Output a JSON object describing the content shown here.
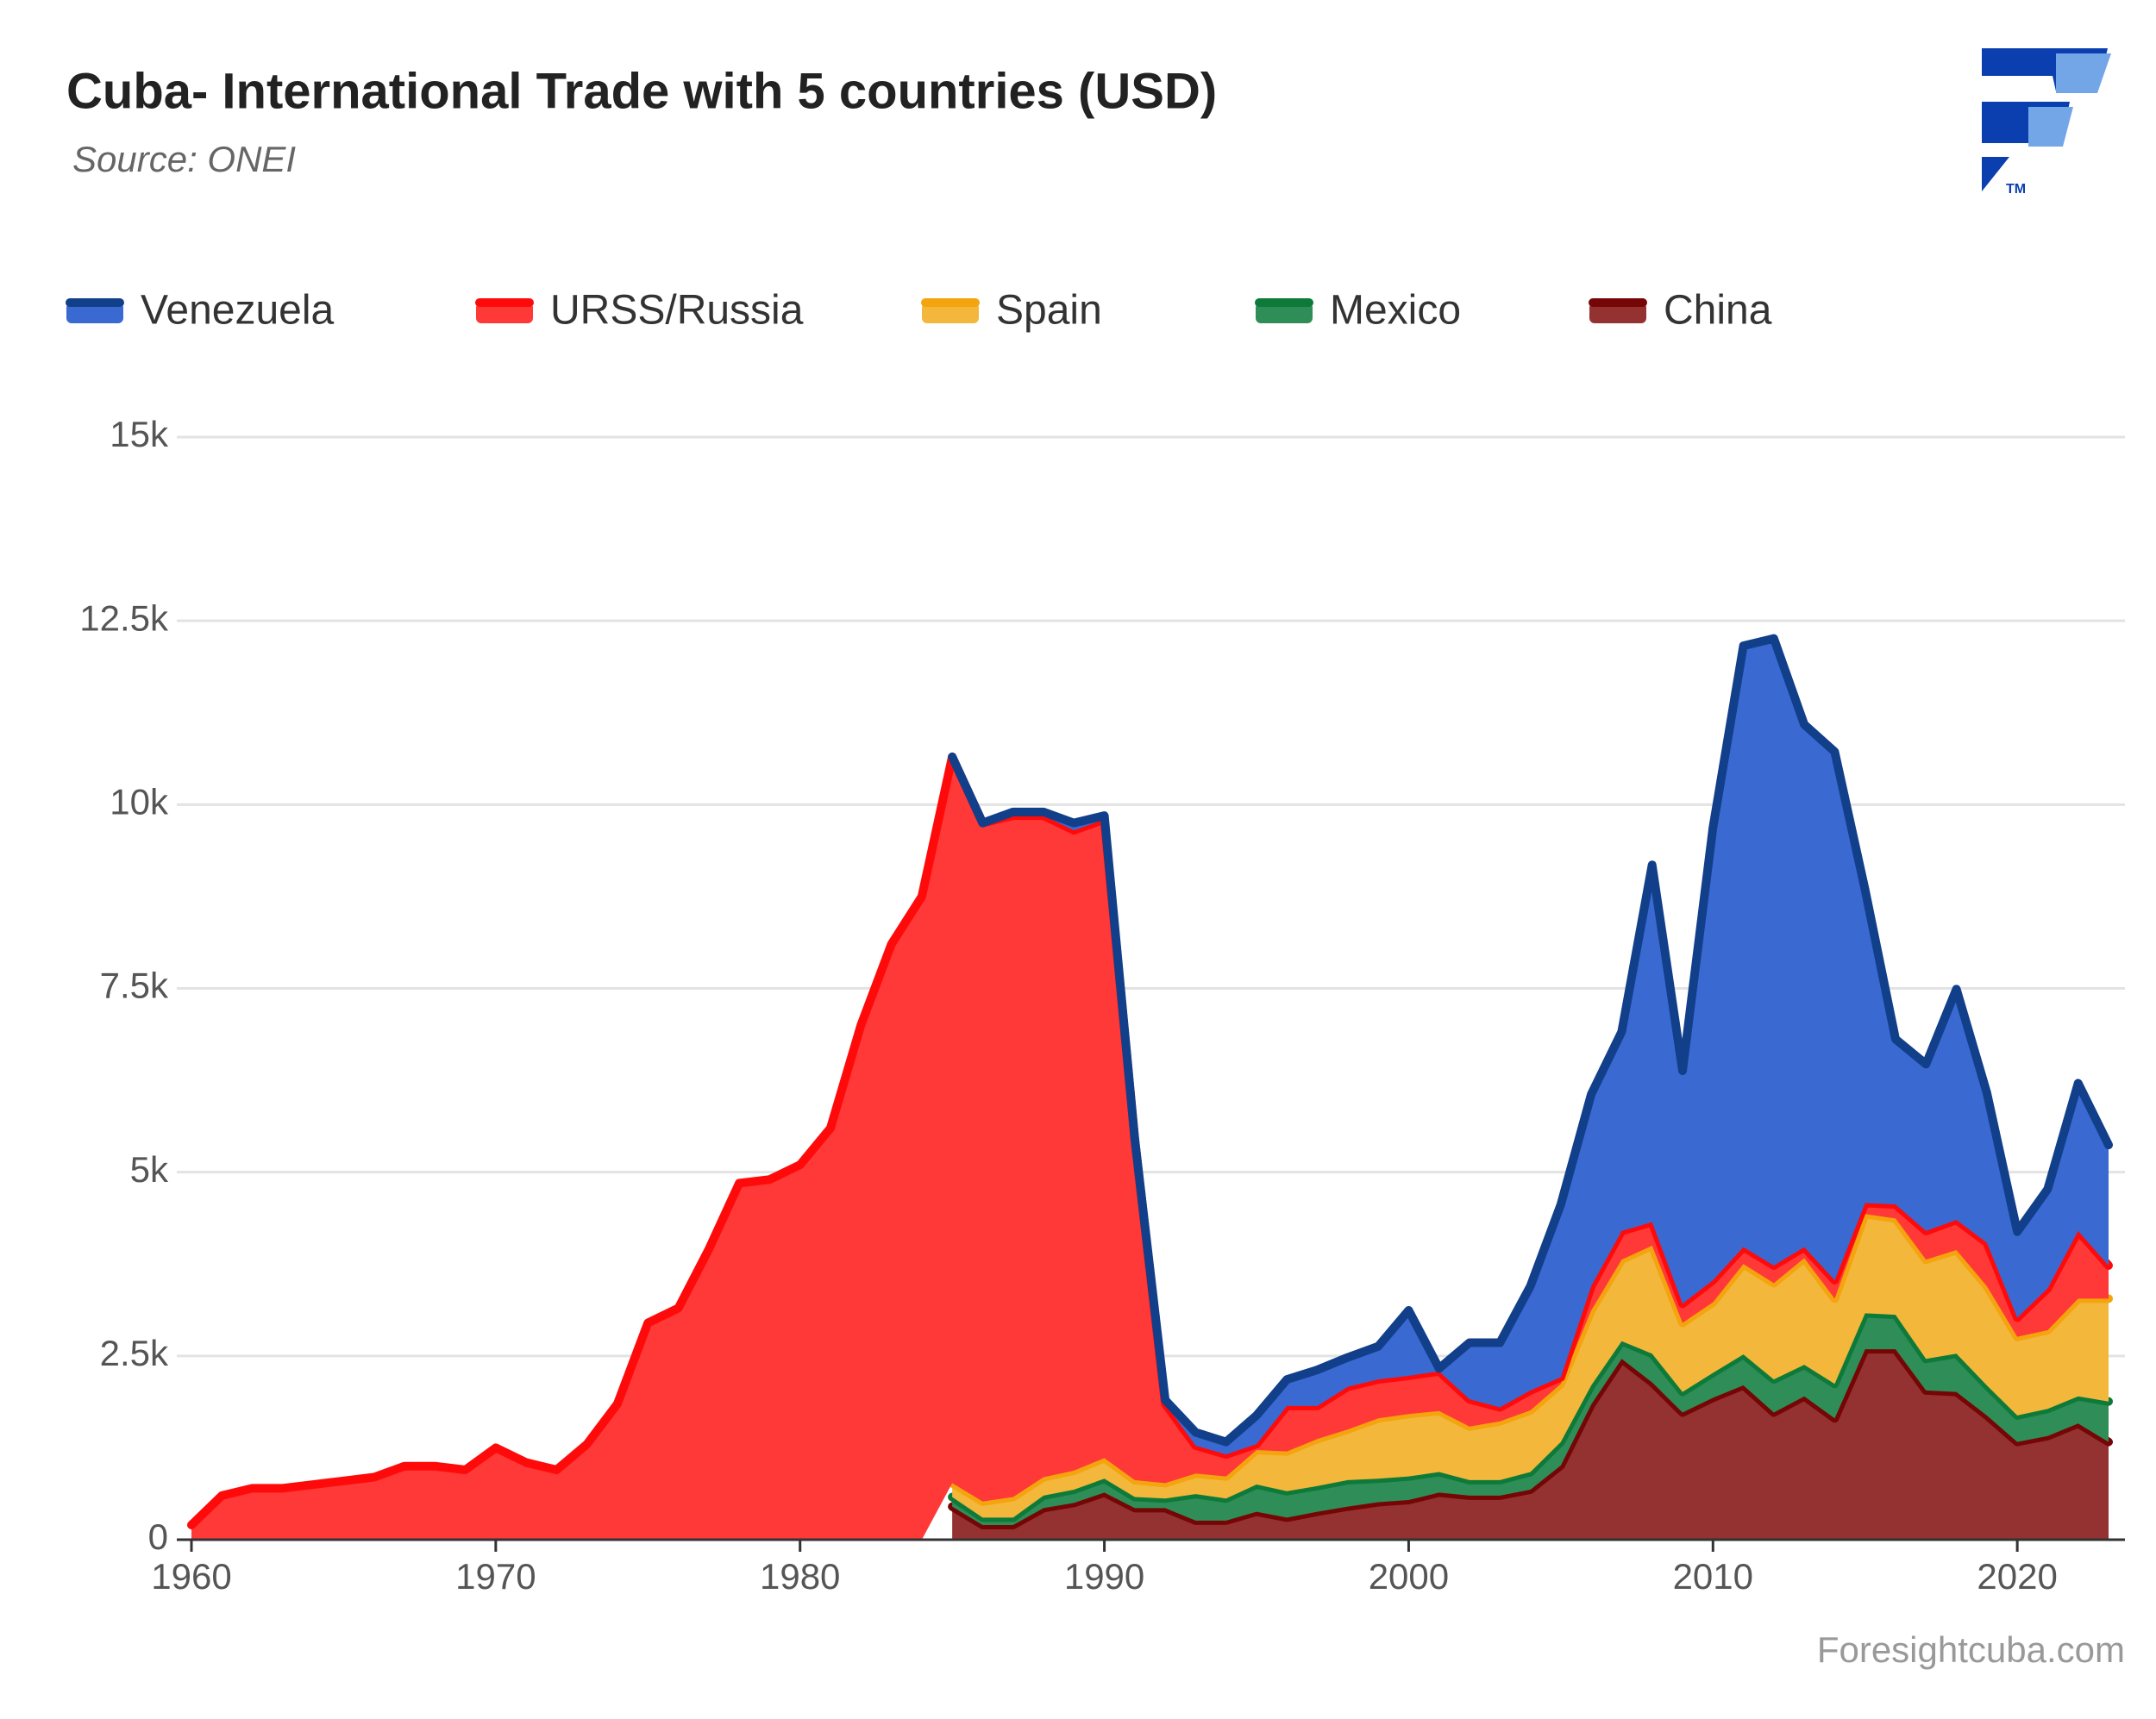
{
  "chart_data": {
    "type": "stacked_area",
    "title": "Cuba- International Trade with 5 countries (USD)",
    "subtitle": "Source: ONEI",
    "credit": "Foresightcuba.com",
    "x": [
      1960,
      1961,
      1962,
      1963,
      1964,
      1965,
      1966,
      1967,
      1968,
      1969,
      1970,
      1971,
      1972,
      1973,
      1974,
      1975,
      1976,
      1977,
      1978,
      1979,
      1980,
      1981,
      1982,
      1983,
      1984,
      1985,
      1986,
      1987,
      1988,
      1989,
      1990,
      1991,
      1992,
      1993,
      1994,
      1995,
      1996,
      1997,
      1998,
      1999,
      2000,
      2001,
      2002,
      2003,
      2004,
      2005,
      2006,
      2007,
      2008,
      2009,
      2010,
      2011,
      2012,
      2013,
      2014,
      2015,
      2016,
      2017,
      2018,
      2019,
      2020,
      2021,
      2022,
      2023
    ],
    "series": [
      {
        "name": "Venezuela",
        "color": "#3a69d2",
        "line_color": "#123f8a",
        "values": [
          null,
          null,
          null,
          null,
          null,
          null,
          null,
          null,
          null,
          null,
          null,
          null,
          null,
          null,
          null,
          null,
          null,
          null,
          null,
          null,
          null,
          null,
          null,
          null,
          null,
          0,
          0,
          50,
          50,
          100,
          50,
          0,
          50,
          180,
          170,
          390,
          360,
          490,
          400,
          450,
          890,
          40,
          770,
          880,
          1420,
          2350,
          2610,
          2710,
          4860,
          3170,
          6160,
          8180,
          8530,
          7110,
          7190,
          4260,
          2250,
          2270,
          3140,
          2040,
          1170,
          1350,
          2010,
          1640
        ]
      },
      {
        "name": "URSS/Russia",
        "color": "#ff3838",
        "line_color": "#ff0a0a",
        "values": [
          200,
          600,
          700,
          700,
          750,
          800,
          850,
          1000,
          1000,
          950,
          1250,
          1050,
          950,
          1300,
          1850,
          2950,
          3150,
          3950,
          4850,
          4900,
          5100,
          5600,
          7000,
          8100,
          8750,
          9880,
          9230,
          9270,
          9000,
          8710,
          8690,
          4640,
          1080,
          380,
          300,
          80,
          620,
          450,
          580,
          530,
          520,
          540,
          370,
          190,
          270,
          90,
          330,
          390,
          320,
          260,
          300,
          230,
          240,
          150,
          250,
          150,
          190,
          390,
          410,
          590,
          260,
          570,
          920,
          450
        ]
      },
      {
        "name": "Spain",
        "color": "#f3b73c",
        "line_color": "#f4a40c",
        "values": [
          null,
          null,
          null,
          null,
          null,
          null,
          null,
          null,
          null,
          null,
          null,
          null,
          null,
          null,
          null,
          null,
          null,
          null,
          null,
          null,
          null,
          null,
          null,
          null,
          null,
          190,
          220,
          280,
          250,
          260,
          280,
          230,
          210,
          280,
          300,
          470,
          540,
          640,
          690,
          820,
          850,
          830,
          730,
          800,
          840,
          790,
          1020,
          1110,
          1470,
          940,
          960,
          1230,
          1310,
          1450,
          1160,
          1350,
          1310,
          1350,
          1410,
          1350,
          1070,
          1070,
          1330,
          1400
        ]
      },
      {
        "name": "Mexico",
        "color": "#2f8d57",
        "line_color": "#0e7a3a",
        "values": [
          null,
          null,
          null,
          null,
          null,
          null,
          null,
          null,
          null,
          null,
          null,
          null,
          null,
          null,
          null,
          null,
          null,
          null,
          null,
          null,
          null,
          null,
          null,
          null,
          null,
          130,
          100,
          100,
          170,
          180,
          190,
          150,
          130,
          360,
          300,
          370,
          360,
          350,
          360,
          320,
          320,
          280,
          210,
          210,
          240,
          320,
          260,
          240,
          390,
          280,
          340,
          420,
          450,
          430,
          470,
          490,
          470,
          430,
          520,
          410,
          360,
          370,
          370,
          550
        ]
      },
      {
        "name": "China",
        "color": "#943232",
        "line_color": "#760606",
        "values": [
          null,
          null,
          null,
          null,
          null,
          null,
          null,
          null,
          null,
          null,
          null,
          null,
          null,
          null,
          null,
          null,
          null,
          null,
          null,
          null,
          null,
          null,
          null,
          null,
          null,
          450,
          200,
          200,
          430,
          500,
          640,
          430,
          430,
          260,
          260,
          380,
          300,
          380,
          450,
          510,
          540,
          640,
          600,
          600,
          680,
          1010,
          1840,
          2460,
          2140,
          1730,
          1930,
          2100,
          1730,
          1950,
          1650,
          2590,
          2590,
          2030,
          2010,
          1690,
          1330,
          1410,
          1580,
          1330
        ]
      }
    ],
    "xlim": [
      1960,
      2023
    ],
    "xticks": [
      1960,
      1970,
      1980,
      1990,
      2000,
      2010,
      2020
    ],
    "ylim": [
      0,
      15000
    ],
    "yticks": [
      0,
      {
        "value": 2500,
        "label": "2.5k"
      },
      {
        "value": 5000,
        "label": "5k"
      },
      {
        "value": 7500,
        "label": "7.5k"
      },
      {
        "value": 10000,
        "label": "10k"
      },
      {
        "value": 12500,
        "label": "12.5k"
      },
      {
        "value": 15000,
        "label": "15k"
      }
    ],
    "grid": true,
    "legend": "top"
  }
}
